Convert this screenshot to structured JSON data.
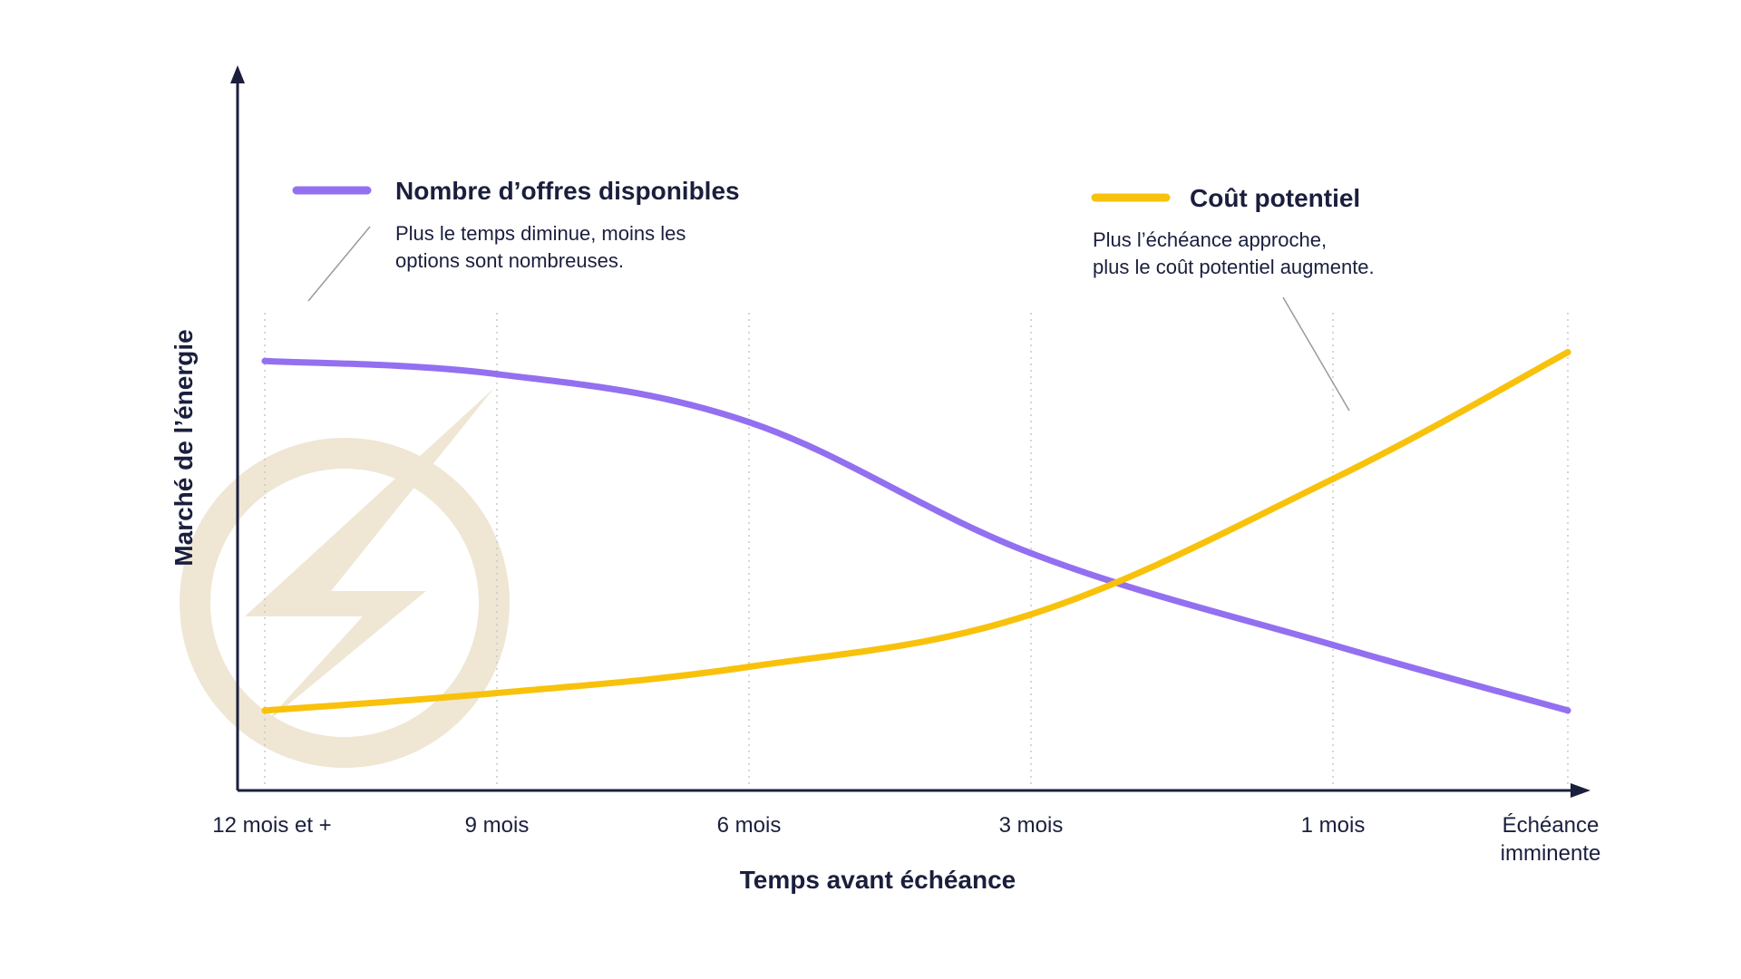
{
  "chart_data": {
    "type": "line",
    "xlabel": "Temps avant échéance",
    "ylabel": "Marché de l’énergie",
    "categories": [
      "12 mois et +",
      "9 mois",
      "6 mois",
      "3 mois",
      "1 mois",
      "Échéance imminente"
    ],
    "category_lines": [
      [
        "12 mois et +"
      ],
      [
        "9 mois"
      ],
      [
        "6 mois"
      ],
      [
        "3 mois"
      ],
      [
        "1 mois"
      ],
      [
        "Échéance",
        "imminente"
      ]
    ],
    "grid": "vertical dotted lines at each category",
    "series": [
      {
        "name": "Nombre d’offres disponibles",
        "description_lines": [
          "Plus le temps diminue, moins les",
          "options sont nombreuses."
        ],
        "color": "#9370f0",
        "values": [
          0.9,
          0.87,
          0.76,
          0.46,
          0.25,
          0.1
        ]
      },
      {
        "name": "Coût potentiel",
        "description_lines": [
          "Plus l’échéance approche,",
          "plus le coût potentiel augmente."
        ],
        "color": "#f8c20c",
        "values": [
          0.1,
          0.14,
          0.2,
          0.32,
          0.63,
          0.92
        ]
      }
    ],
    "legend": "top, left and right annotations with leader lines",
    "watermark": "lightning-bolt-icon",
    "colors": {
      "axis": "#1a1f3d",
      "grid": "#c8c8c8",
      "watermark": "#efe6d4",
      "text": "#1a1f3d"
    }
  }
}
